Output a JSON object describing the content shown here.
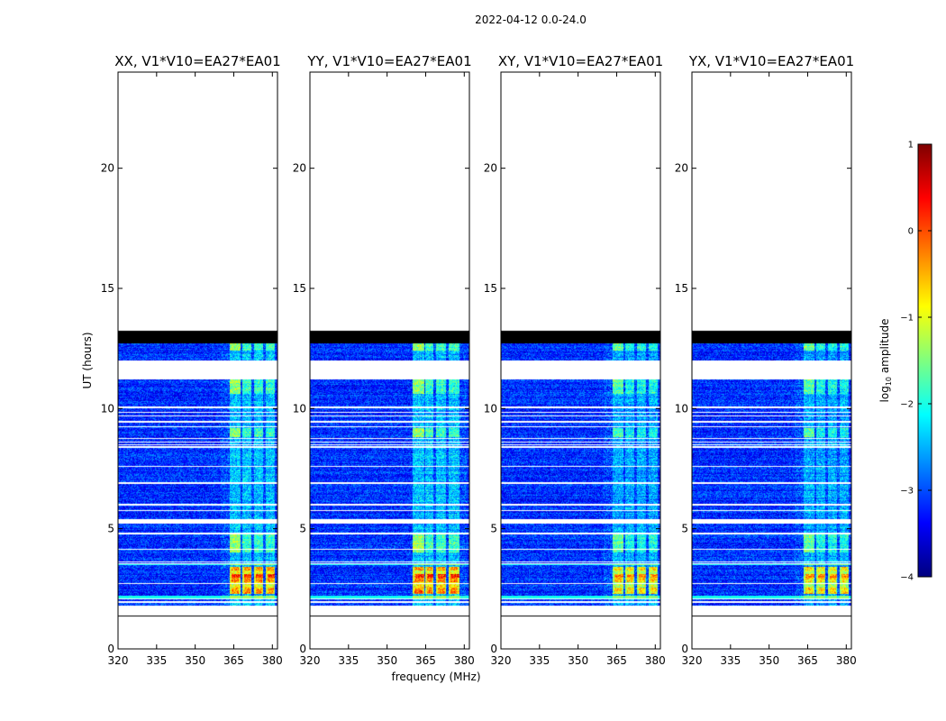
{
  "chart_data": {
    "type": "heatmap",
    "suptitle": "2022-04-12 0.0-24.0",
    "xlabel": "frequency (MHz)",
    "ylabel": "UT (hours)",
    "xlim": [
      320,
      382
    ],
    "ylim": [
      0,
      24
    ],
    "xticks": [
      320,
      335,
      350,
      365,
      380
    ],
    "yticks": [
      0,
      5,
      10,
      15,
      20
    ],
    "panels": [
      {
        "title": "XX, V1*V10=EA27*EA01",
        "pol": "XX",
        "rfi_level": 1.0,
        "rfi_bands_mhz": [
          [
            363.5,
            367.5
          ],
          [
            368.5,
            372
          ],
          [
            373,
            376.5
          ],
          [
            377.5,
            381
          ]
        ],
        "rfi_strong_hours": [
          2.3,
          3.4
        ]
      },
      {
        "title": "YY, V1*V10=EA27*EA01",
        "pol": "YY",
        "rfi_level": 1.0,
        "rfi_bands_mhz": [
          [
            360,
            364.5
          ],
          [
            365,
            368
          ],
          [
            369,
            373
          ],
          [
            374,
            378
          ]
        ],
        "rfi_strong_hours": [
          2.3,
          3.4
        ]
      },
      {
        "title": "XY, V1*V10=EA27*EA01",
        "pol": "XY",
        "rfi_level": 0.85,
        "rfi_bands_mhz": [
          [
            363.5,
            367.5
          ],
          [
            368.5,
            372
          ],
          [
            373,
            376.5
          ],
          [
            377.5,
            381
          ]
        ],
        "rfi_strong_hours": [
          2.3,
          3.4
        ]
      },
      {
        "title": "YX, V1*V10=EA27*EA01",
        "pol": "YX",
        "rfi_level": 0.85,
        "rfi_bands_mhz": [
          [
            363.5,
            367.5
          ],
          [
            368.5,
            372
          ],
          [
            373,
            376.5
          ],
          [
            377.5,
            381
          ]
        ],
        "rfi_strong_hours": [
          2.3,
          3.4
        ]
      }
    ],
    "data_hours": [
      1.4,
      13.2
    ],
    "flagged_black_hours": [
      [
        12.7,
        13.25
      ],
      [
        1.35,
        1.4
      ]
    ],
    "missing_hours": [
      [
        11.2,
        12.0
      ],
      [
        5.2,
        5.4
      ],
      [
        1.4,
        1.8
      ]
    ],
    "colorbar": {
      "label": "log10 amplitude",
      "label_main": "log",
      "label_sub": "10",
      "label_rest": " amplitude",
      "range": [
        -4,
        1
      ],
      "ticks": [
        1,
        0,
        -1,
        -2,
        -3,
        -4
      ],
      "tick_labels": [
        "1",
        "0",
        "−1",
        "−2",
        "−3",
        "−4"
      ],
      "colormap": "jet",
      "colors": [
        "#00007f",
        "#0000ff",
        "#007fff",
        "#00ffff",
        "#7fff7f",
        "#ffff00",
        "#ff7f00",
        "#ff0000",
        "#7f0000"
      ]
    }
  }
}
